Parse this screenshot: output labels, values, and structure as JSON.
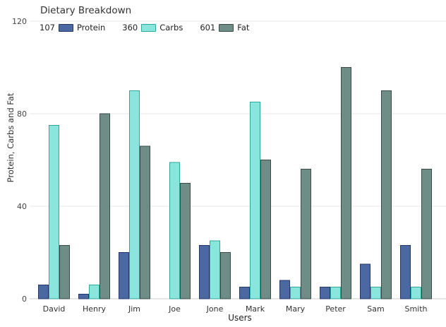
{
  "title": "Dietary Breakdown",
  "chart_data": {
    "type": "bar",
    "title": "Dietary Breakdown",
    "xlabel": "Users",
    "ylabel": "Protein, Carbs and Fat",
    "categories": [
      "David",
      "Henry",
      "Jim",
      "Joe",
      "Jone",
      "Mark",
      "Mary",
      "Peter",
      "Sam",
      "Smith"
    ],
    "series": [
      {
        "name": "Protein",
        "total": "107",
        "color": "#4c68a2",
        "border": "#24386b",
        "values": [
          6,
          2,
          20,
          0,
          23,
          5,
          8,
          5,
          15,
          23
        ]
      },
      {
        "name": "Carbs",
        "total": "360",
        "color": "#8ae5dc",
        "border": "#2fa79a",
        "values": [
          75,
          6,
          90,
          59,
          25,
          85,
          5,
          5,
          5,
          5
        ]
      },
      {
        "name": "Fat",
        "total": "601",
        "color": "#6f8d87",
        "border": "#3a4b47",
        "values": [
          23,
          80,
          66,
          50,
          20,
          60,
          56,
          100,
          90,
          56
        ]
      }
    ],
    "yticks": [
      0,
      40,
      80,
      120
    ],
    "ylim": [
      0,
      120
    ],
    "grid": true,
    "legend_position": "top-left"
  },
  "colors": {
    "background": "#ffffff",
    "gridline": "#e7e7e7",
    "axis_line": "#cccccc",
    "tick_text": "#444444",
    "category_text": "#333333"
  }
}
